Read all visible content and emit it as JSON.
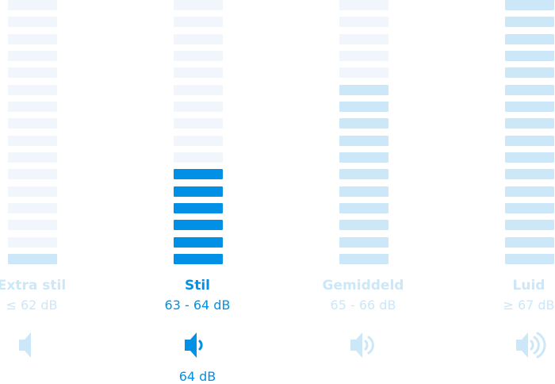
{
  "colors": {
    "empty": "#f0f6fc",
    "filled_inactive": "#cce7f8",
    "active": "#0091e6"
  },
  "total_bars": 16,
  "levels": [
    {
      "title": "Extra stil",
      "range": "≤ 62 dB",
      "filled_bars": 1,
      "active": false,
      "icon": "speaker-icon",
      "waves": 0
    },
    {
      "title": "Stil",
      "range": "63 - 64 dB",
      "filled_bars": 6,
      "active": true,
      "icon": "speaker-low-icon",
      "waves": 1,
      "value": "64 dB"
    },
    {
      "title": "Gemiddeld",
      "range": "65 - 66 dB",
      "filled_bars": 11,
      "active": false,
      "icon": "speaker-medium-icon",
      "waves": 2
    },
    {
      "title": "Luid",
      "range": "≥ 67 dB",
      "filled_bars": 16,
      "active": false,
      "icon": "speaker-high-icon",
      "waves": 3
    }
  ]
}
